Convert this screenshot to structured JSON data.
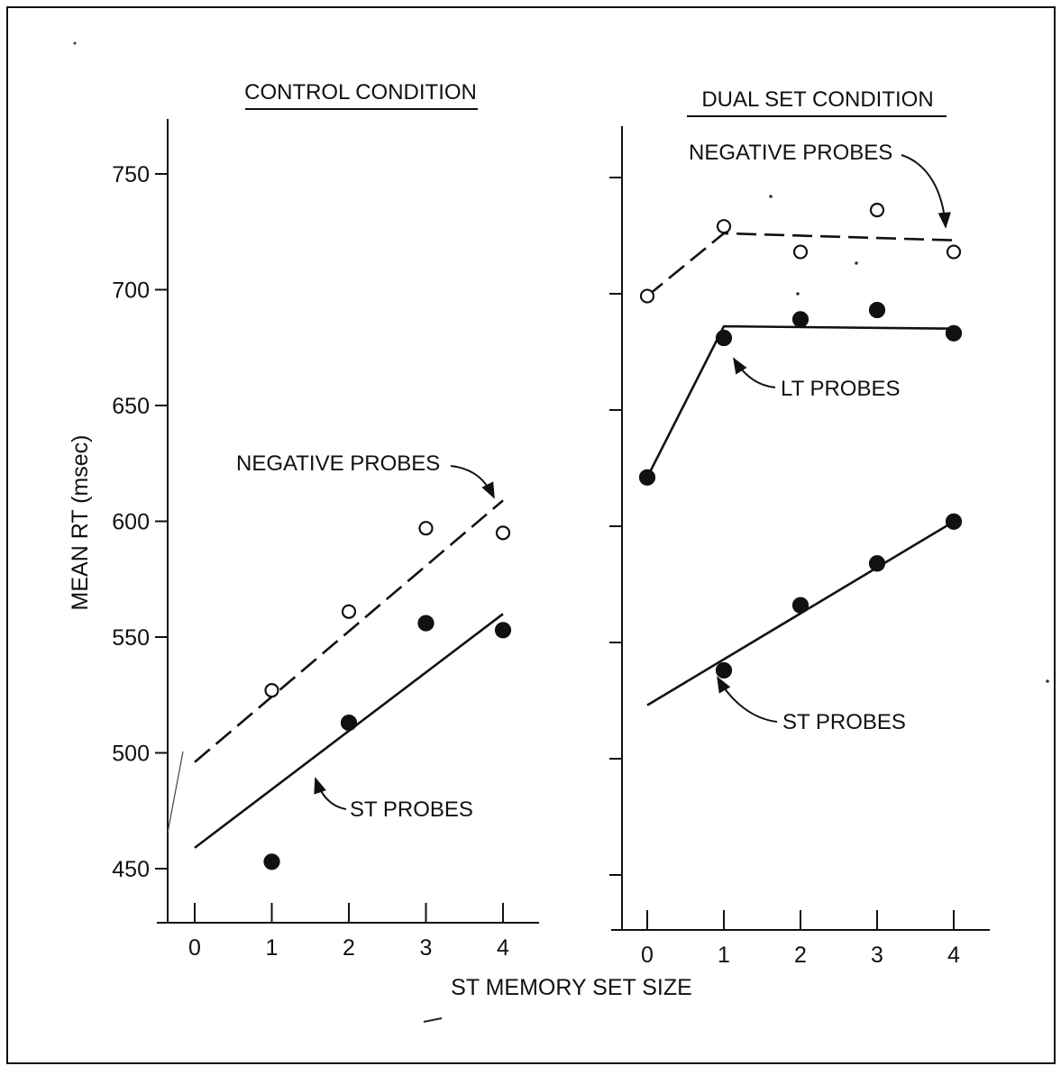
{
  "colors": {
    "ink": "#111111",
    "paper": "#ffffff"
  },
  "shared_xlabel": "ST MEMORY SET SIZE",
  "shared_ylabel": "MEAN RT (msec)",
  "chart_data": [
    {
      "type": "scatter",
      "title": "CONTROL CONDITION",
      "xlabel": "ST MEMORY SET SIZE",
      "ylabel": "MEAN RT (msec)",
      "xlim": [
        0,
        4
      ],
      "ylim": [
        450,
        750
      ],
      "xticks": [
        0,
        1,
        2,
        3,
        4
      ],
      "xtick_labels": [
        "0",
        "1",
        "2",
        "3",
        "4"
      ],
      "yticks": [
        450,
        500,
        550,
        600,
        650,
        700,
        750
      ],
      "ytick_labels": [
        "450",
        "500",
        "550",
        "600",
        "650",
        "700",
        "750"
      ],
      "grid": false,
      "series": [
        {
          "name": "NEGATIVE PROBES",
          "marker": "open-circle",
          "points": [
            {
              "x": 1,
              "y": 527
            },
            {
              "x": 2,
              "y": 561
            },
            {
              "x": 3,
              "y": 597
            },
            {
              "x": 4,
              "y": 595
            }
          ],
          "fit": {
            "style": "dashed",
            "points": [
              {
                "x": 0,
                "y": 496
              },
              {
                "x": 4,
                "y": 609
              }
            ]
          }
        },
        {
          "name": "ST PROBES",
          "marker": "filled-circle",
          "points": [
            {
              "x": 1,
              "y": 453
            },
            {
              "x": 2,
              "y": 513
            },
            {
              "x": 3,
              "y": 556
            },
            {
              "x": 4,
              "y": 553
            }
          ],
          "fit": {
            "style": "solid",
            "points": [
              {
                "x": 0,
                "y": 459
              },
              {
                "x": 4,
                "y": 560
              }
            ]
          }
        }
      ],
      "annotations": [
        {
          "text": "NEGATIVE PROBES",
          "series": "NEGATIVE PROBES"
        },
        {
          "text": "ST PROBES",
          "series": "ST PROBES"
        }
      ]
    },
    {
      "type": "scatter",
      "title": "DUAL SET CONDITION",
      "xlabel": "ST MEMORY SET SIZE",
      "ylabel": "MEAN RT (msec)",
      "xlim": [
        0,
        4
      ],
      "ylim": [
        450,
        750
      ],
      "xticks": [
        0,
        1,
        2,
        3,
        4
      ],
      "xtick_labels": [
        "0",
        "1",
        "2",
        "3",
        "4"
      ],
      "yticks": [
        450,
        500,
        550,
        600,
        650,
        700,
        750
      ],
      "ytick_labels": [],
      "grid": false,
      "series": [
        {
          "name": "NEGATIVE PROBES",
          "marker": "open-circle",
          "points": [
            {
              "x": 0,
              "y": 699
            },
            {
              "x": 1,
              "y": 729
            },
            {
              "x": 2,
              "y": 718
            },
            {
              "x": 3,
              "y": 736
            },
            {
              "x": 4,
              "y": 718
            }
          ],
          "fit": {
            "style": "dashed",
            "points": [
              {
                "x": 0,
                "y": 699
              },
              {
                "x": 1,
                "y": 726
              },
              {
                "x": 4,
                "y": 723
              }
            ]
          }
        },
        {
          "name": "LT PROBES",
          "marker": "filled-circle",
          "points": [
            {
              "x": 0,
              "y": 621
            },
            {
              "x": 1,
              "y": 681
            },
            {
              "x": 2,
              "y": 689
            },
            {
              "x": 3,
              "y": 693
            },
            {
              "x": 4,
              "y": 683
            }
          ],
          "fit": {
            "style": "solid",
            "points": [
              {
                "x": 0,
                "y": 621
              },
              {
                "x": 1,
                "y": 686
              },
              {
                "x": 4,
                "y": 685
              }
            ]
          }
        },
        {
          "name": "ST PROBES",
          "marker": "filled-circle",
          "points": [
            {
              "x": 1,
              "y": 538
            },
            {
              "x": 2,
              "y": 566
            },
            {
              "x": 3,
              "y": 584
            },
            {
              "x": 4,
              "y": 602
            }
          ],
          "fit": {
            "style": "solid",
            "points": [
              {
                "x": 0,
                "y": 523
              },
              {
                "x": 4,
                "y": 602
              }
            ]
          }
        }
      ],
      "annotations": [
        {
          "text": "NEGATIVE PROBES",
          "series": "NEGATIVE PROBES"
        },
        {
          "text": "LT PROBES",
          "series": "LT PROBES"
        },
        {
          "text": "ST PROBES",
          "series": "ST PROBES"
        }
      ]
    }
  ]
}
